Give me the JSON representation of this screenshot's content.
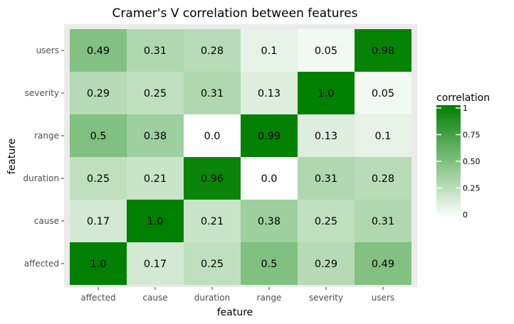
{
  "chart_data": {
    "type": "heatmap",
    "title": "Cramer's V correlation between features",
    "xlabel": "feature",
    "ylabel": "feature",
    "x_categories": [
      "affected",
      "cause",
      "duration",
      "range",
      "severity",
      "users"
    ],
    "y_categories": [
      "affected",
      "cause",
      "duration",
      "range",
      "severity",
      "users"
    ],
    "values": [
      [
        1.0,
        0.17,
        0.25,
        0.5,
        0.29,
        0.49
      ],
      [
        0.17,
        1.0,
        0.21,
        0.38,
        0.25,
        0.31
      ],
      [
        0.25,
        0.21,
        0.96,
        0.0,
        0.31,
        0.28
      ],
      [
        0.5,
        0.38,
        0.0,
        0.99,
        0.13,
        0.1
      ],
      [
        0.29,
        0.25,
        0.31,
        0.13,
        1.0,
        0.05
      ],
      [
        0.49,
        0.31,
        0.28,
        0.1,
        0.05,
        0.98
      ]
    ],
    "cell_labels": [
      [
        "1.0",
        "0.17",
        "0.25",
        "0.5",
        "0.29",
        "0.49"
      ],
      [
        "0.17",
        "1.0",
        "0.21",
        "0.38",
        "0.25",
        "0.31"
      ],
      [
        "0.25",
        "0.21",
        "0.96",
        "0.0",
        "0.31",
        "0.28"
      ],
      [
        "0.5",
        "0.38",
        "0.0",
        "0.99",
        "0.13",
        "0.1"
      ],
      [
        "0.29",
        "0.25",
        "0.31",
        "0.13",
        "1.0",
        "0.05"
      ],
      [
        "0.49",
        "0.31",
        "0.28",
        "0.1",
        "0.05",
        "0.98"
      ]
    ],
    "legend": {
      "title": "correlation",
      "position": "right",
      "ticks": [
        0,
        0.25,
        0.5,
        0.75,
        1
      ],
      "tick_labels": [
        "0",
        "0.25",
        "0.50",
        "0.75",
        "1"
      ]
    },
    "colors": {
      "low": "#ffffff",
      "high": "#008000",
      "panel_background": "#ebebeb"
    }
  }
}
